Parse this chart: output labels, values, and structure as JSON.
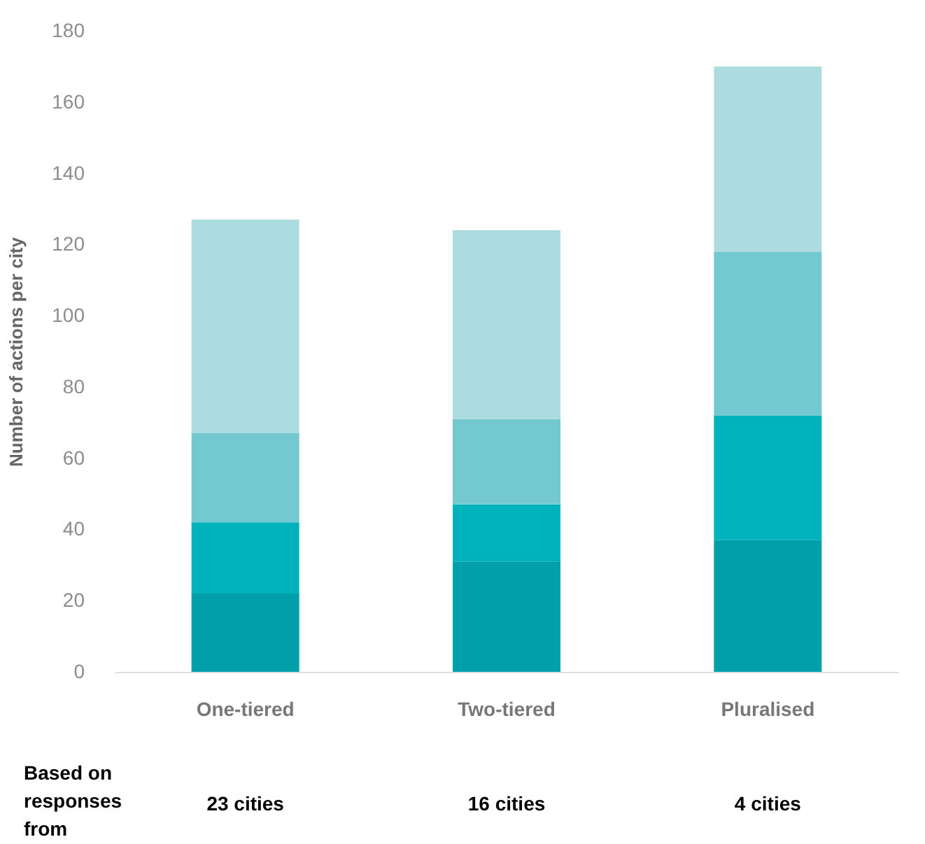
{
  "chart_data": {
    "type": "bar",
    "stacked": true,
    "categories": [
      "One-tiered",
      "Two-tiered",
      "Pluralised"
    ],
    "series": [
      {
        "color": "#00a0aa",
        "values": [
          22,
          31,
          37
        ]
      },
      {
        "color": "#00b2bc",
        "values": [
          20,
          16,
          35
        ]
      },
      {
        "color": "#74c8d0",
        "values": [
          25,
          24,
          46
        ]
      },
      {
        "color": "#acdce0",
        "values": [
          60,
          53,
          52
        ]
      }
    ],
    "ylabel": "Number of actions per city",
    "ylim": [
      0,
      180
    ],
    "yticks": [
      0,
      20,
      40,
      60,
      80,
      100,
      120,
      140,
      160,
      180
    ],
    "grid": false,
    "annotations": [
      "Based on responses from",
      "23  cities",
      "16 cities",
      "4 cities"
    ]
  }
}
